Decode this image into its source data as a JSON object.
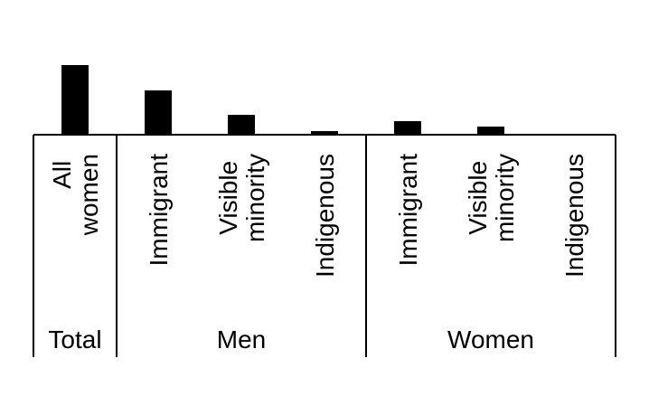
{
  "chart_data": {
    "type": "bar",
    "color": "#000000",
    "groups": [
      {
        "name": "Total",
        "categories": [
          "All women"
        ],
        "values": [
          77
        ]
      },
      {
        "name": "Men",
        "categories": [
          "Immigrant",
          "Visible minority",
          "Indigenous"
        ],
        "values": [
          49,
          22,
          4
        ]
      },
      {
        "name": "Women",
        "categories": [
          "Immigrant",
          "Visible minority",
          "Indigenous"
        ],
        "values": [
          15,
          9,
          1
        ]
      }
    ]
  }
}
